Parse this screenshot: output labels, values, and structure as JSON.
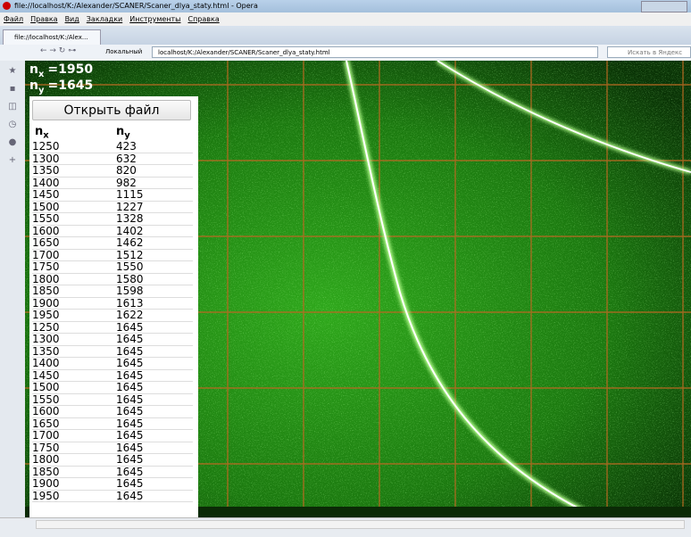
{
  "window": {
    "title": "file://localhost/K:/Alexander/SCANER/Scaner_dlya_staty.html - Opera"
  },
  "menu": [
    "Файл",
    "Правка",
    "Вид",
    "Закладки",
    "Инструменты",
    "Справка"
  ],
  "tab": {
    "title": "file://localhost/K:/Alex..."
  },
  "address": {
    "security": "Локальный",
    "url": "localhost/K:/Alexander/SCANER/Scaner_dlya_staty.html",
    "search": "Искать в Яндекс"
  },
  "overlay": [
    {
      "symbol": "n",
      "sub": "x",
      "text": "=1950"
    },
    {
      "symbol": "n",
      "sub": "y",
      "text": "=1645"
    }
  ],
  "panel": {
    "button": "Открыть файл",
    "headers": [
      {
        "symbol": "n",
        "sub": "x"
      },
      {
        "symbol": "n",
        "sub": "y"
      }
    ],
    "rows": [
      [
        1250,
        423
      ],
      [
        1300,
        632
      ],
      [
        1350,
        820
      ],
      [
        1400,
        982
      ],
      [
        1450,
        1115
      ],
      [
        1500,
        1227
      ],
      [
        1550,
        1328
      ],
      [
        1600,
        1402
      ],
      [
        1650,
        1462
      ],
      [
        1700,
        1512
      ],
      [
        1750,
        1550
      ],
      [
        1800,
        1580
      ],
      [
        1850,
        1598
      ],
      [
        1900,
        1613
      ],
      [
        1950,
        1622
      ],
      [
        1250,
        1645
      ],
      [
        1300,
        1645
      ],
      [
        1350,
        1645
      ],
      [
        1400,
        1645
      ],
      [
        1450,
        1645
      ],
      [
        1500,
        1645
      ],
      [
        1550,
        1645
      ],
      [
        1600,
        1645
      ],
      [
        1650,
        1645
      ],
      [
        1700,
        1645
      ],
      [
        1750,
        1645
      ],
      [
        1800,
        1645
      ],
      [
        1850,
        1645
      ],
      [
        1900,
        1645
      ],
      [
        1950,
        1645
      ]
    ]
  }
}
